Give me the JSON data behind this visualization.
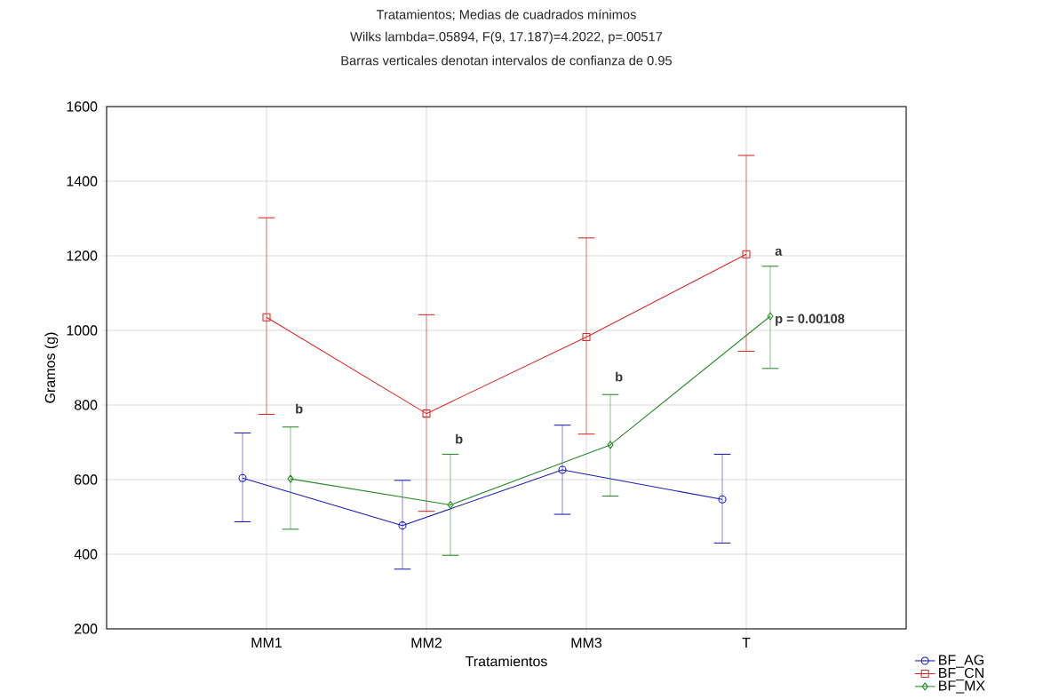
{
  "chart_data": {
    "type": "line",
    "title": "Tratamientos; Medias de cuadrados mínimos",
    "subtitle": "Wilks lambda=.05894, F(9, 17.187)=4.2022, p=.00517",
    "annotations": [
      "Barras verticales denotan intervalos de confianza de 0.95",
      {
        "text": "b",
        "x": "MM1",
        "y": 790
      },
      {
        "text": "b",
        "x": "MM2",
        "y": 709
      },
      {
        "text": "b",
        "x": "MM3",
        "y": 876
      },
      {
        "text": "a",
        "x": "T",
        "y": 1210
      },
      {
        "text": "p = 0.00108",
        "x": "T",
        "y": 1028
      }
    ],
    "xlabel": "Tratamientos",
    "ylabel": "Gramos (g)",
    "categories": [
      "MM1",
      "MM2",
      "MM3",
      "T"
    ],
    "series": [
      {
        "name": "BF_AG",
        "color": "#1c1cb4",
        "marker": "circle",
        "values": [
          604,
          477,
          626,
          547
        ],
        "errors": [
          [
            487,
            725
          ],
          [
            360,
            598
          ],
          [
            507,
            746
          ],
          [
            430,
            668
          ]
        ]
      },
      {
        "name": "BF_CN",
        "color": "#dc2828",
        "marker": "square",
        "values": [
          1035,
          777,
          982,
          1204
        ],
        "errors": [
          [
            775,
            1302
          ],
          [
            515,
            1042
          ],
          [
            722,
            1248
          ],
          [
            944,
            1469
          ]
        ]
      },
      {
        "name": "BF_MX",
        "color": "#2a8a2a",
        "marker": "diamond",
        "values": [
          602,
          532,
          693,
          1038
        ],
        "errors": [
          [
            467,
            741
          ],
          [
            397,
            668
          ],
          [
            556,
            828
          ],
          [
            898,
            1172
          ]
        ]
      }
    ],
    "ylim": [
      200,
      1600
    ],
    "yticks": [
      200,
      400,
      600,
      800,
      1000,
      1200,
      1400,
      1600
    ],
    "grid": true,
    "legend": "bottom right",
    "line_style": "solid"
  }
}
